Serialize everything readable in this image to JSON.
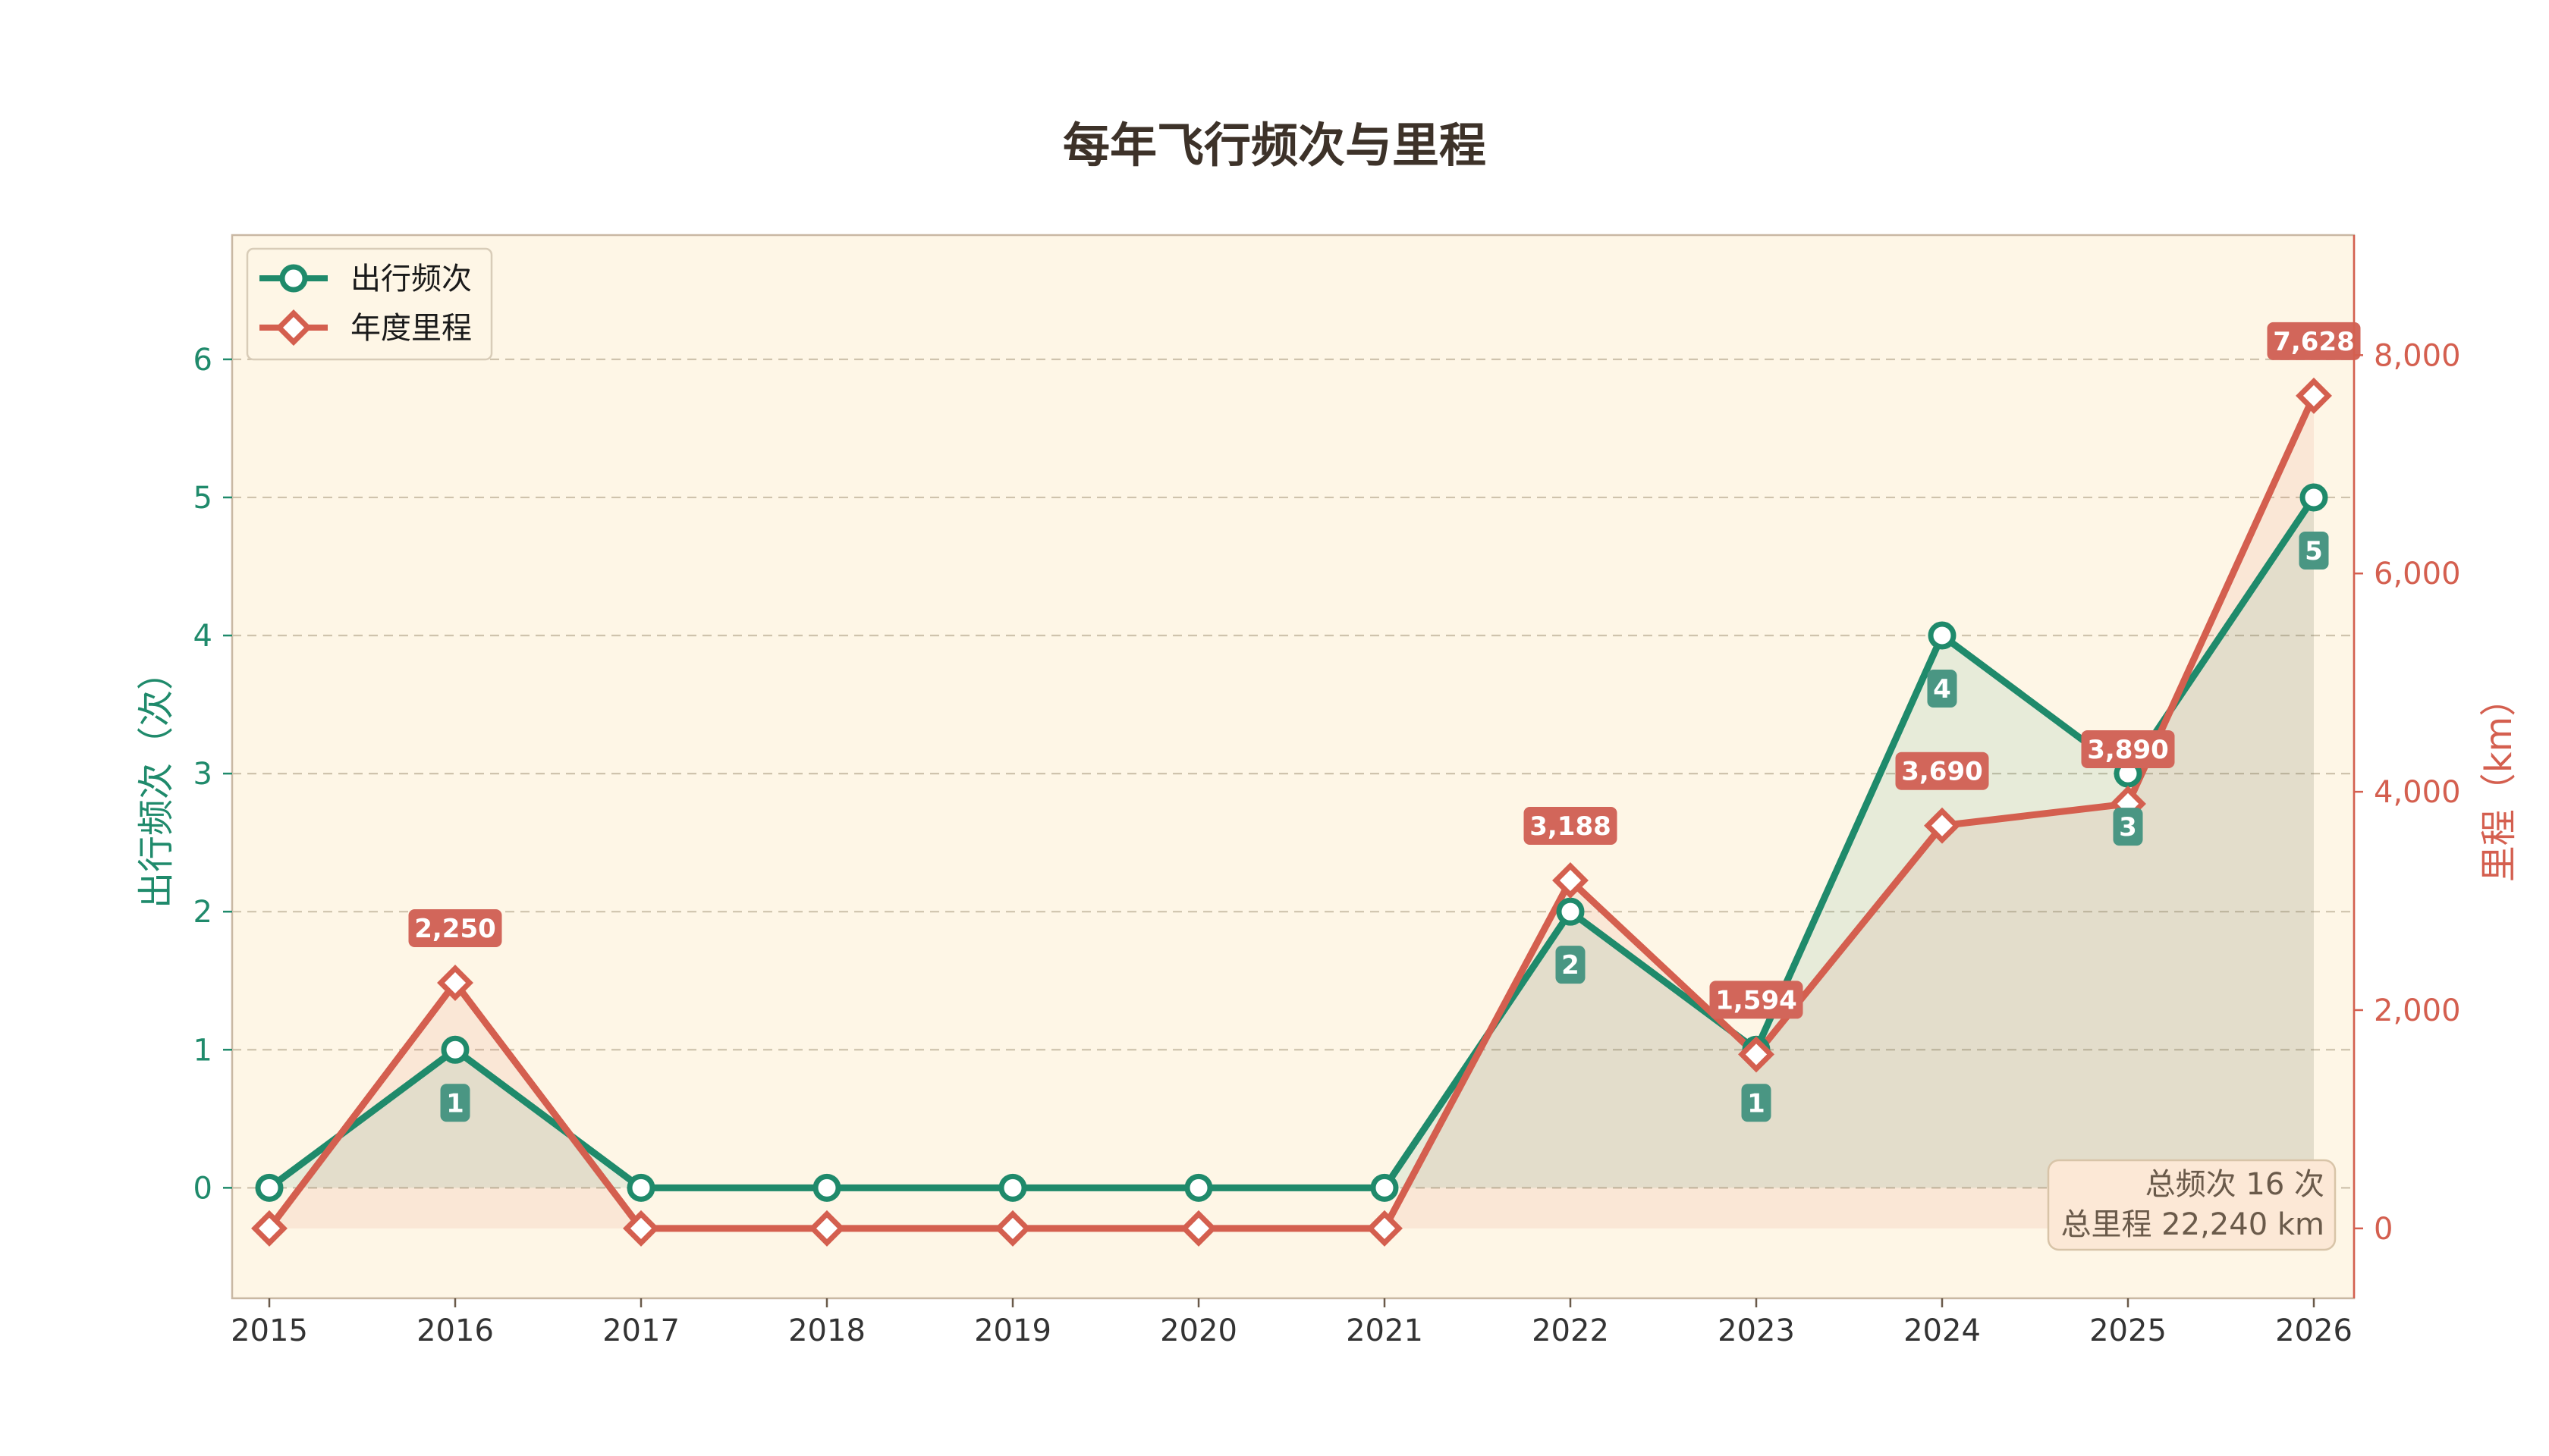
{
  "chart_data": {
    "type": "line",
    "title": "每年飞行频次与里程",
    "x": [
      "2015",
      "2016",
      "2017",
      "2018",
      "2019",
      "2020",
      "2021",
      "2022",
      "2023",
      "2024",
      "2025",
      "2026"
    ],
    "series": [
      {
        "name": "出行频次",
        "axis": "left",
        "values": [
          0,
          1,
          0,
          0,
          0,
          0,
          0,
          2,
          1,
          4,
          3,
          5
        ],
        "color": "#1f8a6b",
        "marker": "circle"
      },
      {
        "name": "年度里程",
        "axis": "right",
        "values": [
          0,
          2250,
          0,
          0,
          0,
          0,
          0,
          3188,
          1594,
          3690,
          3890,
          7628
        ],
        "color": "#d45f4f",
        "marker": "diamond"
      }
    ],
    "y_left": {
      "label": "出行频次（次）",
      "range": [
        -0.8,
        6.9
      ],
      "ticks": [
        0,
        1,
        2,
        3,
        4,
        5,
        6
      ],
      "tick_labels": [
        "0",
        "1",
        "2",
        "3",
        "4",
        "5",
        "6"
      ]
    },
    "y_right": {
      "label": "里程（km）",
      "range": [
        -640,
        9100
      ],
      "ticks": [
        0,
        2000,
        4000,
        6000,
        8000
      ],
      "tick_labels": [
        "0",
        "2,000",
        "4,000",
        "6,000",
        "8,000"
      ]
    },
    "grid": true,
    "legend_position": "top-left",
    "annotation": {
      "line1": "总频次 16 次",
      "line2": "总里程 22,240 km"
    },
    "data_labels": {
      "frequency": [
        "1",
        "2",
        "1",
        "4",
        "3",
        "5"
      ],
      "mileage": [
        "2,250",
        "3,188",
        "1,594",
        "3,690",
        "3,890",
        "7,628"
      ]
    },
    "colors": {
      "background": "#fef6e6",
      "frequency": "#1f8a6b",
      "mileage": "#d45f4f",
      "frequency_label_bg": "#4a9683",
      "mileage_label_bg": "#d2665a",
      "title": "#3d3229"
    }
  }
}
